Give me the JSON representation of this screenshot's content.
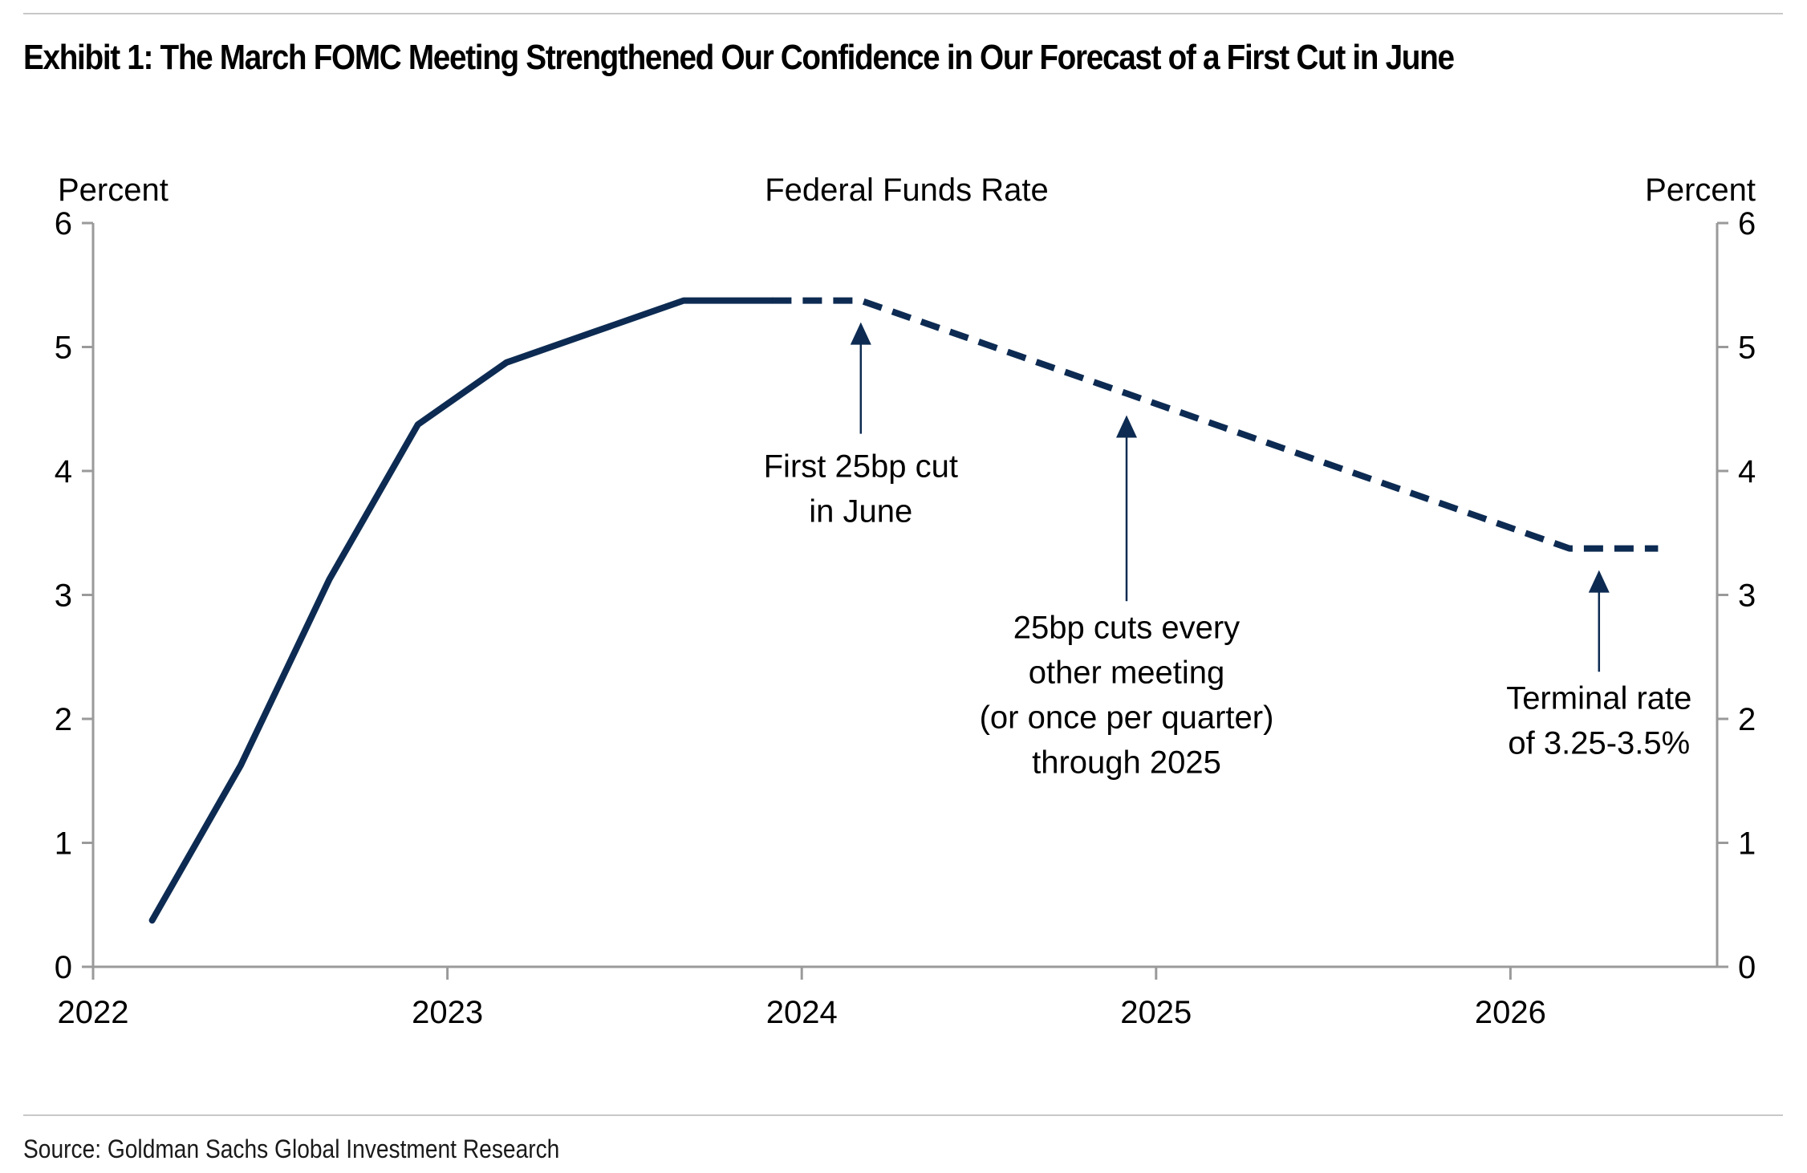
{
  "header": {
    "title": "Exhibit 1: The March FOMC Meeting Strengthened Our Confidence in Our Forecast of a First Cut in June"
  },
  "footer": {
    "source": "Source: Goldman Sachs Global Investment Research"
  },
  "colors": {
    "series": "#0d2b52",
    "axis": "#9a9a9a",
    "rule": "#c8c8c8",
    "text": "#000000"
  },
  "chart_data": {
    "type": "line",
    "title": "Federal Funds Rate",
    "ylabel_left": "Percent",
    "ylabel_right": "Percent",
    "xlabel": "",
    "xlim": [
      "2022-01",
      "2026-08"
    ],
    "ylim": [
      0,
      6
    ],
    "x_ticks": [
      "2022",
      "2023",
      "2024",
      "2025",
      "2026"
    ],
    "y_ticks": [
      "0",
      "1",
      "2",
      "3",
      "4",
      "5",
      "6"
    ],
    "grid": false,
    "legend": "none",
    "series": [
      {
        "style": "solid",
        "color": "#0d2b52",
        "x": [
          "2022-03",
          "2022-06",
          "2022-09",
          "2022-12",
          "2023-03",
          "2023-06",
          "2023-09",
          "2023-12"
        ],
        "y": [
          0.375,
          1.625,
          3.125,
          4.375,
          4.875,
          5.125,
          5.375,
          5.375
        ]
      },
      {
        "style": "dashed",
        "color": "#0d2b52",
        "x": [
          "2023-12",
          "2024-03",
          "2024-06",
          "2024-09",
          "2024-12",
          "2025-03",
          "2025-06",
          "2025-09",
          "2025-12",
          "2026-03",
          "2026-06"
        ],
        "y": [
          5.375,
          5.375,
          5.125,
          4.875,
          4.625,
          4.375,
          4.125,
          3.875,
          3.625,
          3.375,
          3.375
        ]
      }
    ],
    "annotations": [
      {
        "id": "first-cut",
        "lines": [
          "First 25bp cut",
          "in June"
        ],
        "arrow_x": "2024-03",
        "arrow_tip_y": 5.2,
        "arrow_tail_y": 4.3,
        "text_y": 3.95
      },
      {
        "id": "cuts-every-other",
        "lines": [
          "25bp cuts every",
          "other meeting",
          "(or once per quarter)",
          "through 2025"
        ],
        "arrow_x": "2024-12",
        "arrow_tip_y": 4.45,
        "arrow_tail_y": 2.95,
        "text_y": 2.65
      },
      {
        "id": "terminal-rate",
        "lines": [
          "Terminal rate",
          "of 3.25-3.5%"
        ],
        "arrow_x": "2026-04",
        "arrow_tip_y": 3.2,
        "arrow_tail_y": 2.38,
        "text_y": 2.08
      }
    ]
  }
}
